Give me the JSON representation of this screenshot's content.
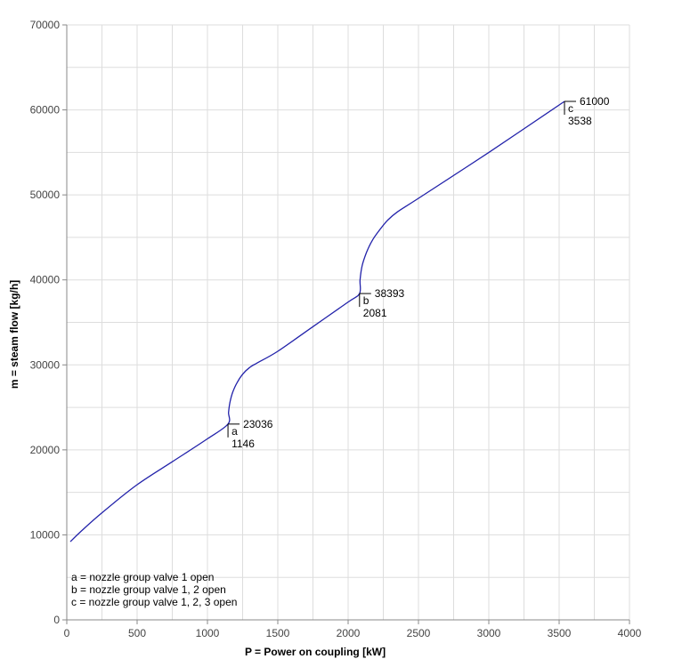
{
  "chart_data": {
    "type": "line",
    "xlabel": "P = Power on coupling [kW]",
    "ylabel": "m = steam flow [kg/h]",
    "xlim": [
      0,
      4000
    ],
    "ylim": [
      0,
      70000
    ],
    "x_ticks": [
      0,
      500,
      1000,
      1500,
      2000,
      2500,
      3000,
      3500,
      4000
    ],
    "y_ticks": [
      0,
      10000,
      20000,
      30000,
      40000,
      50000,
      60000,
      70000
    ],
    "x_tick_labels": [
      "0",
      "500",
      "1000",
      "1500",
      "2000",
      "2500",
      "3000",
      "3500",
      "4000"
    ],
    "y_tick_labels": [
      "0",
      "10000",
      "20000",
      "30000",
      "40000",
      "50000",
      "60000",
      "70000"
    ],
    "grid": true,
    "series": [
      {
        "color": "#2222aa",
        "points": [
          [
            25,
            9200
          ],
          [
            100,
            10400
          ],
          [
            250,
            12600
          ],
          [
            500,
            15900
          ],
          [
            750,
            18600
          ],
          [
            1000,
            21300
          ],
          [
            1146,
            23036
          ],
          [
            1150,
            24400
          ],
          [
            1160,
            25600
          ],
          [
            1180,
            26800
          ],
          [
            1210,
            27900
          ],
          [
            1250,
            28900
          ],
          [
            1300,
            29700
          ],
          [
            1350,
            30200
          ],
          [
            1500,
            31600
          ],
          [
            1750,
            34500
          ],
          [
            2000,
            37400
          ],
          [
            2081,
            38393
          ],
          [
            2085,
            40000
          ],
          [
            2100,
            41700
          ],
          [
            2130,
            43200
          ],
          [
            2170,
            44600
          ],
          [
            2220,
            45800
          ],
          [
            2280,
            47000
          ],
          [
            2350,
            48000
          ],
          [
            2500,
            49600
          ],
          [
            3000,
            55000
          ],
          [
            3538,
            61000
          ]
        ]
      }
    ],
    "annotations": [
      {
        "letter": "a",
        "x": 1146,
        "y": 23036,
        "x_label": "1146",
        "y_label": "23036"
      },
      {
        "letter": "b",
        "x": 2081,
        "y": 38393,
        "x_label": "2081",
        "y_label": "38393"
      },
      {
        "letter": "c",
        "x": 3538,
        "y": 61000,
        "x_label": "3538",
        "y_label": "61000"
      }
    ],
    "legend": {
      "placement": "bottom-left",
      "lines": [
        "a = nozzle group valve 1 open",
        "b = nozzle group valve 1, 2 open",
        "c = nozzle group valve 1, 2, 3 open"
      ]
    },
    "colors": {
      "line": "#2222aa",
      "grid": "#dddddd",
      "axis": "#888888"
    }
  }
}
